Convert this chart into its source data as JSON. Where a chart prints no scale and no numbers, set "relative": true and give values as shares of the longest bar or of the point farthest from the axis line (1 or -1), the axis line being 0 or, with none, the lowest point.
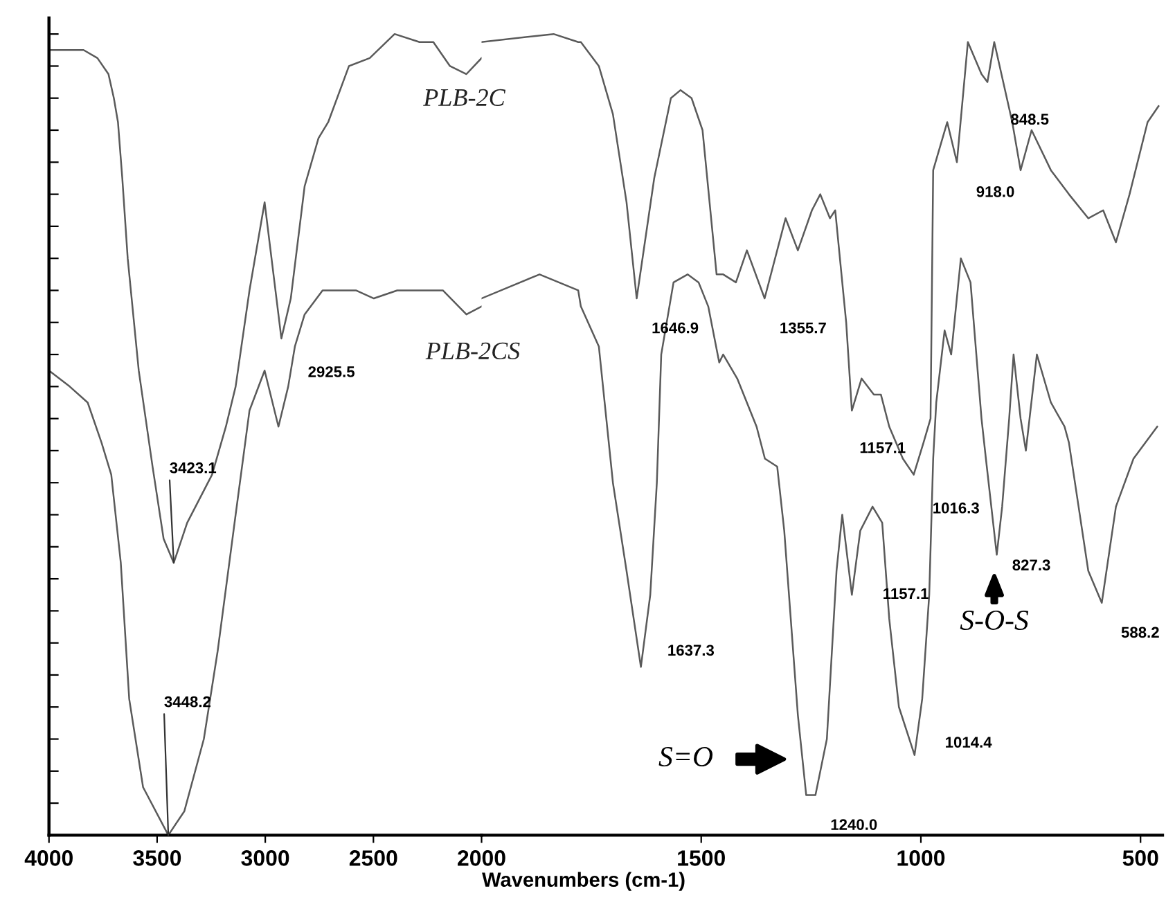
{
  "chart_data": [
    {
      "type": "line",
      "relative": true,
      "tick_labels": "x",
      "xlim": [
        4000,
        2000
      ],
      "xticks": [
        4000,
        3500,
        3000,
        2500,
        2000
      ],
      "series": [
        {
          "name": "PLB-2C",
          "color": "#5a5a5a",
          "x": [
            4000,
            3904,
            3840,
            3776,
            3725,
            3700,
            3681,
            3661,
            3636,
            3585,
            3521,
            3470,
            3423.1,
            3361,
            3246,
            3182,
            3137,
            3073,
            3003,
            2925.5,
            2882,
            2818,
            2754,
            2709,
            2613,
            2517,
            2402,
            2287,
            2223,
            2146,
            2070,
            2000
          ],
          "values": [
            0.98,
            0.98,
            0.98,
            0.97,
            0.95,
            0.92,
            0.89,
            0.82,
            0.72,
            0.58,
            0.46,
            0.37,
            0.34,
            0.39,
            0.45,
            0.51,
            0.56,
            0.68,
            0.79,
            0.62,
            0.67,
            0.81,
            0.87,
            0.89,
            0.96,
            0.97,
            1.0,
            0.99,
            0.99,
            0.96,
            0.95,
            0.97
          ]
        },
        {
          "name": "PLB-2CS",
          "color": "#5a5a5a",
          "x": [
            4000,
            3904,
            3821,
            3757,
            3712,
            3668,
            3629,
            3565,
            3448.2,
            3374,
            3284,
            3220,
            3137,
            3073,
            3003,
            2939,
            2894,
            2863,
            2818,
            2735,
            2581,
            2498,
            2390,
            2351,
            2179,
            2070,
            2000
          ],
          "values": [
            0.58,
            0.56,
            0.54,
            0.49,
            0.45,
            0.34,
            0.17,
            0.06,
            0.0,
            0.03,
            0.12,
            0.23,
            0.4,
            0.53,
            0.58,
            0.51,
            0.56,
            0.61,
            0.65,
            0.68,
            0.68,
            0.67,
            0.68,
            0.68,
            0.68,
            0.65,
            0.66
          ]
        }
      ],
      "annotations": [
        {
          "text": "3423.1",
          "x": 3423.1,
          "y": 0.34
        },
        {
          "text": "2925.5",
          "x": 2925.5,
          "y": 0.62
        },
        {
          "text": "3448.2",
          "x": 3448.2,
          "y": 0.0
        }
      ]
    },
    {
      "type": "line",
      "relative": true,
      "tick_labels": "x",
      "xlabel": "Wavenumbers (cm-1)",
      "xlim": [
        2000,
        450
      ],
      "xticks": [
        1500,
        1000,
        500
      ],
      "series": [
        {
          "color": "#5a5a5a",
          "x": [
            2000,
            1836,
            1780,
            1774,
            1733,
            1701,
            1670,
            1646.9,
            1607,
            1569,
            1547,
            1522,
            1497,
            1465,
            1450,
            1421,
            1396,
            1355.7,
            1308,
            1280,
            1248,
            1229,
            1207,
            1195,
            1170,
            1157.1,
            1135,
            1107,
            1091,
            1072,
            1041,
            1016.3,
            994,
            978,
            972,
            940,
            918.0,
            893,
            862,
            848.5,
            833,
            792,
            773,
            748,
            704,
            663,
            619,
            585,
            556,
            525,
            484,
            459
          ],
          "values": [
            0.99,
            1.0,
            0.99,
            0.99,
            0.96,
            0.9,
            0.79,
            0.67,
            0.82,
            0.92,
            0.93,
            0.92,
            0.88,
            0.7,
            0.7,
            0.69,
            0.73,
            0.67,
            0.77,
            0.73,
            0.78,
            0.8,
            0.77,
            0.78,
            0.64,
            0.53,
            0.57,
            0.55,
            0.55,
            0.51,
            0.47,
            0.45,
            0.49,
            0.52,
            0.83,
            0.89,
            0.84,
            0.99,
            0.95,
            0.94,
            0.99,
            0.89,
            0.83,
            0.88,
            0.83,
            0.8,
            0.77,
            0.78,
            0.74,
            0.8,
            0.89,
            0.91
          ]
        },
        {
          "color": "#5a5a5a",
          "x": [
            2000,
            1868,
            1780,
            1774,
            1733,
            1701,
            1670,
            1637.3,
            1616,
            1601,
            1591,
            1563,
            1531,
            1506,
            1484,
            1459,
            1450,
            1418,
            1374,
            1355,
            1327,
            1311,
            1280,
            1261,
            1240.0,
            1214,
            1192,
            1179,
            1157.1,
            1138,
            1110,
            1088,
            1072,
            1050,
            1014.4,
            997,
            981,
            972,
            965,
            946,
            931,
            909,
            887,
            862,
            852,
            827.3,
            815,
            799,
            789,
            773,
            761,
            736,
            704,
            673,
            663,
            641,
            619,
            588.2,
            556,
            516,
            462
          ],
          "values": [
            0.67,
            0.7,
            0.68,
            0.66,
            0.61,
            0.44,
            0.33,
            0.21,
            0.3,
            0.44,
            0.6,
            0.69,
            0.7,
            0.69,
            0.66,
            0.59,
            0.6,
            0.57,
            0.51,
            0.47,
            0.46,
            0.38,
            0.15,
            0.05,
            0.05,
            0.12,
            0.33,
            0.4,
            0.3,
            0.38,
            0.41,
            0.39,
            0.27,
            0.16,
            0.1,
            0.17,
            0.3,
            0.47,
            0.54,
            0.63,
            0.6,
            0.72,
            0.69,
            0.52,
            0.47,
            0.35,
            0.41,
            0.52,
            0.6,
            0.52,
            0.48,
            0.6,
            0.54,
            0.51,
            0.49,
            0.41,
            0.33,
            0.29,
            0.41,
            0.47,
            0.51
          ]
        }
      ],
      "annotations": [
        {
          "text": "1646.9",
          "x": 1646.9,
          "y": 0.67
        },
        {
          "text": "1355.7",
          "x": 1355.7,
          "y": 0.67
        },
        {
          "text": "1157.1",
          "x": 1157.1,
          "y": 0.53
        },
        {
          "text": "1016.3",
          "x": 1016.3,
          "y": 0.45
        },
        {
          "text": "918.0",
          "x": 918.0,
          "y": 0.84
        },
        {
          "text": "848.5",
          "x": 848.5,
          "y": 0.94
        },
        {
          "text": "1637.3",
          "x": 1637.3,
          "y": 0.21
        },
        {
          "text": "1240.0",
          "x": 1240.0,
          "y": 0.05
        },
        {
          "text": "1157.1",
          "x": 1157.1,
          "y": 0.3
        },
        {
          "text": "1014.4",
          "x": 1014.4,
          "y": 0.1
        },
        {
          "text": "827.3",
          "x": 827.3,
          "y": 0.35
        },
        {
          "text": "588.2",
          "x": 588.2,
          "y": 0.29
        },
        "S=O",
        "S-O-S"
      ]
    }
  ]
}
